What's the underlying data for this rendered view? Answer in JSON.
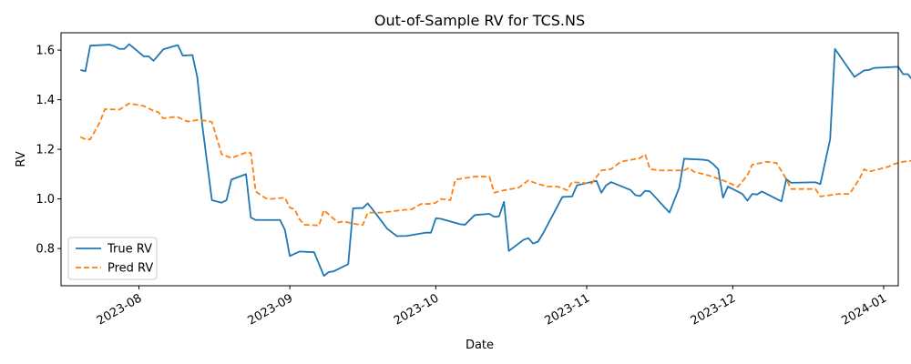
{
  "chart_data": {
    "type": "line",
    "title": "Out-of-Sample RV for TCS.NS",
    "xlabel": "Date",
    "ylabel": "RV",
    "x_axis_type": "date",
    "xlim": [
      "2023-07-16",
      "2024-01-04"
    ],
    "ylim": [
      0.65,
      1.67
    ],
    "yticks": [
      0.8,
      1.0,
      1.2,
      1.4,
      1.6
    ],
    "xticks": [
      "2023-08-01",
      "2023-09-01",
      "2023-10-01",
      "2023-11-01",
      "2023-12-01",
      "2024-01-01"
    ],
    "xtick_labels": [
      "2023-08",
      "2023-09",
      "2023-10",
      "2023-11",
      "2023-12",
      "2024-01"
    ],
    "grid": false,
    "legend_position": "lower-left",
    "series": [
      {
        "name": "True RV",
        "color": "#1f77b4",
        "dash": "solid",
        "points": [
          [
            "2023-07-20",
            1.52
          ],
          [
            "2023-07-21",
            1.515
          ],
          [
            "2023-07-22",
            1.618
          ],
          [
            "2023-07-26",
            1.622
          ],
          [
            "2023-07-27",
            1.615
          ],
          [
            "2023-07-28",
            1.605
          ],
          [
            "2023-07-29",
            1.605
          ],
          [
            "2023-07-30",
            1.624
          ],
          [
            "2023-08-02",
            1.575
          ],
          [
            "2023-08-03",
            1.575
          ],
          [
            "2023-08-04",
            1.557
          ],
          [
            "2023-08-06",
            1.603
          ],
          [
            "2023-08-08",
            1.615
          ],
          [
            "2023-08-09",
            1.62
          ],
          [
            "2023-08-10",
            1.578
          ],
          [
            "2023-08-12",
            1.58
          ],
          [
            "2023-08-13",
            1.49
          ],
          [
            "2023-08-14",
            1.3
          ],
          [
            "2023-08-16",
            0.995
          ],
          [
            "2023-08-18",
            0.985
          ],
          [
            "2023-08-19",
            0.995
          ],
          [
            "2023-08-20",
            1.078
          ],
          [
            "2023-08-23",
            1.1
          ],
          [
            "2023-08-24",
            0.925
          ],
          [
            "2023-08-25",
            0.915
          ],
          [
            "2023-08-30",
            0.915
          ],
          [
            "2023-08-31",
            0.875
          ],
          [
            "2023-09-01",
            0.77
          ],
          [
            "2023-09-03",
            0.788
          ],
          [
            "2023-09-06",
            0.785
          ],
          [
            "2023-09-08",
            0.69
          ],
          [
            "2023-09-09",
            0.705
          ],
          [
            "2023-09-10",
            0.708
          ],
          [
            "2023-09-13",
            0.737
          ],
          [
            "2023-09-14",
            0.962
          ],
          [
            "2023-09-15",
            0.963
          ],
          [
            "2023-09-16",
            0.963
          ],
          [
            "2023-09-17",
            0.982
          ],
          [
            "2023-09-18",
            0.958
          ],
          [
            "2023-09-21",
            0.88
          ],
          [
            "2023-09-23",
            0.85
          ],
          [
            "2023-09-25",
            0.851
          ],
          [
            "2023-09-29",
            0.864
          ],
          [
            "2023-09-30",
            0.864
          ],
          [
            "2023-10-01",
            0.922
          ],
          [
            "2023-10-02",
            0.92
          ],
          [
            "2023-10-06",
            0.898
          ],
          [
            "2023-10-07",
            0.896
          ],
          [
            "2023-10-09",
            0.935
          ],
          [
            "2023-10-12",
            0.94
          ],
          [
            "2023-10-13",
            0.928
          ],
          [
            "2023-10-14",
            0.93
          ],
          [
            "2023-10-15",
            0.988
          ],
          [
            "2023-10-16",
            0.79
          ],
          [
            "2023-10-19",
            0.835
          ],
          [
            "2023-10-20",
            0.842
          ],
          [
            "2023-10-21",
            0.82
          ],
          [
            "2023-10-22",
            0.828
          ],
          [
            "2023-10-23",
            0.86
          ],
          [
            "2023-10-27",
            1.008
          ],
          [
            "2023-10-29",
            1.01
          ],
          [
            "2023-10-30",
            1.055
          ],
          [
            "2023-11-03",
            1.073
          ],
          [
            "2023-11-04",
            1.025
          ],
          [
            "2023-11-05",
            1.055
          ],
          [
            "2023-11-06",
            1.068
          ],
          [
            "2023-11-10",
            1.036
          ],
          [
            "2023-11-11",
            1.015
          ],
          [
            "2023-11-12",
            1.012
          ],
          [
            "2023-11-13",
            1.033
          ],
          [
            "2023-11-14",
            1.03
          ],
          [
            "2023-11-18",
            0.945
          ],
          [
            "2023-11-20",
            1.045
          ],
          [
            "2023-11-21",
            1.162
          ],
          [
            "2023-11-25",
            1.158
          ],
          [
            "2023-11-26",
            1.155
          ],
          [
            "2023-11-27",
            1.14
          ],
          [
            "2023-11-28",
            1.12
          ],
          [
            "2023-11-29",
            1.005
          ],
          [
            "2023-11-30",
            1.05
          ],
          [
            "2023-12-03",
            1.02
          ],
          [
            "2023-12-04",
            0.993
          ],
          [
            "2023-12-05",
            1.02
          ],
          [
            "2023-12-06",
            1.018
          ],
          [
            "2023-12-07",
            1.03
          ],
          [
            "2023-12-11",
            0.99
          ],
          [
            "2023-12-12",
            1.08
          ],
          [
            "2023-12-13",
            1.065
          ],
          [
            "2023-12-17",
            1.067
          ],
          [
            "2023-12-18",
            1.067
          ],
          [
            "2023-12-19",
            1.06
          ],
          [
            "2023-12-21",
            1.24
          ],
          [
            "2023-12-22",
            1.605
          ],
          [
            "2023-12-26",
            1.492
          ],
          [
            "2023-12-28",
            1.518
          ],
          [
            "2023-12-29",
            1.52
          ],
          [
            "2023-12-30",
            1.528
          ],
          [
            "2024-01-03",
            1.532
          ],
          [
            "2024-01-04",
            1.533
          ],
          [
            "2024-01-05",
            1.503
          ],
          [
            "2024-01-06",
            1.503
          ],
          [
            "2024-01-07",
            1.478
          ]
        ]
      },
      {
        "name": "Pred RV",
        "color": "#ff7f0e",
        "dash": "dashed",
        "points": [
          [
            "2023-07-20",
            1.25
          ],
          [
            "2023-07-21",
            1.24
          ],
          [
            "2023-07-22",
            1.24
          ],
          [
            "2023-07-24",
            1.31
          ],
          [
            "2023-07-25",
            1.362
          ],
          [
            "2023-07-28",
            1.36
          ],
          [
            "2023-07-30",
            1.385
          ],
          [
            "2023-08-02",
            1.375
          ],
          [
            "2023-08-04",
            1.355
          ],
          [
            "2023-08-05",
            1.35
          ],
          [
            "2023-08-06",
            1.325
          ],
          [
            "2023-08-08",
            1.33
          ],
          [
            "2023-08-09",
            1.33
          ],
          [
            "2023-08-11",
            1.312
          ],
          [
            "2023-08-12",
            1.315
          ],
          [
            "2023-08-13",
            1.318
          ],
          [
            "2023-08-15",
            1.315
          ],
          [
            "2023-08-16",
            1.31
          ],
          [
            "2023-08-18",
            1.18
          ],
          [
            "2023-08-20",
            1.165
          ],
          [
            "2023-08-23",
            1.187
          ],
          [
            "2023-08-24",
            1.185
          ],
          [
            "2023-08-25",
            1.03
          ],
          [
            "2023-08-27",
            1.003
          ],
          [
            "2023-08-28",
            1.0
          ],
          [
            "2023-08-31",
            1.005
          ],
          [
            "2023-09-01",
            0.965
          ],
          [
            "2023-09-02",
            0.958
          ],
          [
            "2023-09-03",
            0.918
          ],
          [
            "2023-09-04",
            0.896
          ],
          [
            "2023-09-07",
            0.893
          ],
          [
            "2023-09-08",
            0.955
          ],
          [
            "2023-09-10",
            0.92
          ],
          [
            "2023-09-11",
            0.905
          ],
          [
            "2023-09-12",
            0.91
          ],
          [
            "2023-09-14",
            0.9
          ],
          [
            "2023-09-16",
            0.895
          ],
          [
            "2023-09-17",
            0.945
          ],
          [
            "2023-09-20",
            0.945
          ],
          [
            "2023-09-22",
            0.95
          ],
          [
            "2023-09-24",
            0.955
          ],
          [
            "2023-09-26",
            0.958
          ],
          [
            "2023-09-28",
            0.98
          ],
          [
            "2023-09-30",
            0.98
          ],
          [
            "2023-10-01",
            0.985
          ],
          [
            "2023-10-02",
            1.0
          ],
          [
            "2023-10-04",
            0.995
          ],
          [
            "2023-10-05",
            1.078
          ],
          [
            "2023-10-09",
            1.09
          ],
          [
            "2023-10-12",
            1.09
          ],
          [
            "2023-10-13",
            1.025
          ],
          [
            "2023-10-15",
            1.035
          ],
          [
            "2023-10-18",
            1.045
          ],
          [
            "2023-10-20",
            1.075
          ],
          [
            "2023-10-22",
            1.06
          ],
          [
            "2023-10-24",
            1.05
          ],
          [
            "2023-10-26",
            1.05
          ],
          [
            "2023-10-28",
            1.035
          ],
          [
            "2023-10-29",
            1.068
          ],
          [
            "2023-10-31",
            1.065
          ],
          [
            "2023-11-02",
            1.062
          ],
          [
            "2023-11-04",
            1.115
          ],
          [
            "2023-11-06",
            1.12
          ],
          [
            "2023-11-08",
            1.15
          ],
          [
            "2023-11-12",
            1.165
          ],
          [
            "2023-11-13",
            1.18
          ],
          [
            "2023-11-14",
            1.12
          ],
          [
            "2023-11-16",
            1.115
          ],
          [
            "2023-11-19",
            1.115
          ],
          [
            "2023-11-21",
            1.115
          ],
          [
            "2023-11-22",
            1.125
          ],
          [
            "2023-11-23",
            1.11
          ],
          [
            "2023-11-26",
            1.095
          ],
          [
            "2023-11-29",
            1.075
          ],
          [
            "2023-12-01",
            1.058
          ],
          [
            "2023-12-02",
            1.048
          ],
          [
            "2023-12-04",
            1.095
          ],
          [
            "2023-12-05",
            1.138
          ],
          [
            "2023-12-08",
            1.15
          ],
          [
            "2023-12-10",
            1.145
          ],
          [
            "2023-12-12",
            1.08
          ],
          [
            "2023-12-13",
            1.04
          ],
          [
            "2023-12-16",
            1.04
          ],
          [
            "2023-12-18",
            1.04
          ],
          [
            "2023-12-19",
            1.01
          ],
          [
            "2023-12-22",
            1.018
          ],
          [
            "2023-12-23",
            1.02
          ],
          [
            "2023-12-25",
            1.02
          ],
          [
            "2023-12-27",
            1.08
          ],
          [
            "2023-12-28",
            1.12
          ],
          [
            "2023-12-29",
            1.11
          ],
          [
            "2023-12-31",
            1.12
          ],
          [
            "2024-01-02",
            1.13
          ],
          [
            "2024-01-03",
            1.14
          ],
          [
            "2024-01-05",
            1.15
          ],
          [
            "2024-01-07",
            1.155
          ]
        ]
      }
    ]
  }
}
